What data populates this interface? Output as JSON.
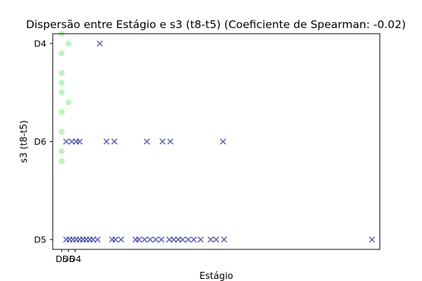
{
  "chart_data": {
    "type": "scatter",
    "title": "Dispersão entre Estágio e s3 (t8-t5) (Coeficiente de Spearman: -0.02)",
    "xlabel": "Estágio",
    "ylabel": "s3 (t8-t5)",
    "x_ticks": [
      {
        "label": "D5",
        "value": 0
      },
      {
        "label": "D6",
        "value": 0.6
      },
      {
        "label": "D4",
        "value": 1.2
      }
    ],
    "y_categories": [
      "D5",
      "D6",
      "D4"
    ],
    "xlim": [
      -0.8,
      28.4
    ],
    "ylim": [
      -0.1,
      2.1
    ],
    "grid": false,
    "legend": "none",
    "series": [
      {
        "marker": "circle",
        "color": "#90ee90",
        "points": [
          [
            0,
            2.1
          ],
          [
            0.6,
            2.0
          ],
          [
            0,
            1.9
          ],
          [
            0,
            1.7
          ],
          [
            0,
            1.6
          ],
          [
            0,
            1.5
          ],
          [
            0.6,
            1.4
          ],
          [
            0,
            1.3
          ],
          [
            0,
            1.1
          ],
          [
            0,
            0.9
          ],
          [
            0,
            0.8
          ]
        ]
      },
      {
        "marker": "x",
        "color": "#00008b",
        "points": [
          [
            3.4,
            2
          ],
          [
            0.4,
            1
          ],
          [
            0.9,
            1
          ],
          [
            1.3,
            1
          ],
          [
            1.6,
            1
          ],
          [
            4.0,
            1
          ],
          [
            4.7,
            1
          ],
          [
            7.6,
            1
          ],
          [
            9.0,
            1
          ],
          [
            9.7,
            1
          ],
          [
            14.4,
            1
          ],
          [
            0.4,
            0
          ],
          [
            0.7,
            0
          ],
          [
            1.0,
            0
          ],
          [
            1.3,
            0
          ],
          [
            1.6,
            0
          ],
          [
            1.9,
            0
          ],
          [
            2.2,
            0
          ],
          [
            2.5,
            0
          ],
          [
            2.8,
            0
          ],
          [
            3.2,
            0
          ],
          [
            4.5,
            0
          ],
          [
            4.8,
            0
          ],
          [
            5.3,
            0
          ],
          [
            6.6,
            0
          ],
          [
            6.9,
            0
          ],
          [
            7.4,
            0
          ],
          [
            7.9,
            0
          ],
          [
            8.4,
            0
          ],
          [
            8.9,
            0
          ],
          [
            9.6,
            0
          ],
          [
            10.0,
            0
          ],
          [
            10.4,
            0
          ],
          [
            10.8,
            0
          ],
          [
            11.3,
            0
          ],
          [
            11.8,
            0
          ],
          [
            12.4,
            0
          ],
          [
            13.3,
            0
          ],
          [
            13.8,
            0
          ],
          [
            14.5,
            0
          ],
          [
            27.7,
            0
          ]
        ]
      }
    ]
  }
}
